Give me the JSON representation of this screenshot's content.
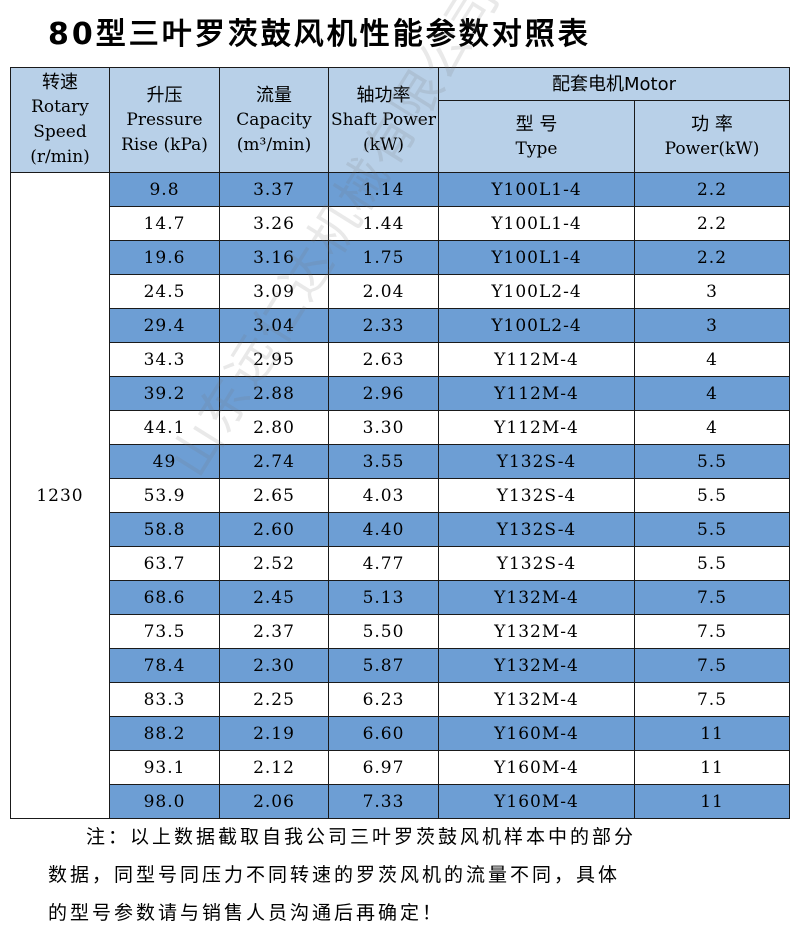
{
  "title": "80型三叶罗茨鼓风机性能参数对照表",
  "headers": {
    "speed_cn": "转速",
    "speed_en": "Rotary Speed (r/min)",
    "pressure_cn": "升压",
    "pressure_en": "Pressure Rise (kPa)",
    "capacity_cn": "流量",
    "capacity_en": "Capacity (m³/min)",
    "shaft_cn": "轴功率",
    "shaft_en": "Shaft Power (kW)",
    "motor_group": "配套电机Motor",
    "type_cn": "型 号",
    "type_en": "Type",
    "power_cn": "功 率",
    "power_en": "Power(kW)"
  },
  "speed_value": "1230",
  "rows": [
    {
      "pressure": "9.8",
      "capacity": "3.37",
      "shaft": "1.14",
      "type": "Y100L1-4",
      "power": "2.2"
    },
    {
      "pressure": "14.7",
      "capacity": "3.26",
      "shaft": "1.44",
      "type": "Y100L1-4",
      "power": "2.2"
    },
    {
      "pressure": "19.6",
      "capacity": "3.16",
      "shaft": "1.75",
      "type": "Y100L1-4",
      "power": "2.2"
    },
    {
      "pressure": "24.5",
      "capacity": "3.09",
      "shaft": "2.04",
      "type": "Y100L2-4",
      "power": "3"
    },
    {
      "pressure": "29.4",
      "capacity": "3.04",
      "shaft": "2.33",
      "type": "Y100L2-4",
      "power": "3"
    },
    {
      "pressure": "34.3",
      "capacity": "2.95",
      "shaft": "2.63",
      "type": "Y112M-4",
      "power": "4"
    },
    {
      "pressure": "39.2",
      "capacity": "2.88",
      "shaft": "2.96",
      "type": "Y112M-4",
      "power": "4"
    },
    {
      "pressure": "44.1",
      "capacity": "2.80",
      "shaft": "3.30",
      "type": "Y112M-4",
      "power": "4"
    },
    {
      "pressure": "49",
      "capacity": "2.74",
      "shaft": "3.55",
      "type": "Y132S-4",
      "power": "5.5"
    },
    {
      "pressure": "53.9",
      "capacity": "2.65",
      "shaft": "4.03",
      "type": "Y132S-4",
      "power": "5.5"
    },
    {
      "pressure": "58.8",
      "capacity": "2.60",
      "shaft": "4.40",
      "type": "Y132S-4",
      "power": "5.5"
    },
    {
      "pressure": "63.7",
      "capacity": "2.52",
      "shaft": "4.77",
      "type": "Y132S-4",
      "power": "5.5"
    },
    {
      "pressure": "68.6",
      "capacity": "2.45",
      "shaft": "5.13",
      "type": "Y132M-4",
      "power": "7.5"
    },
    {
      "pressure": "73.5",
      "capacity": "2.37",
      "shaft": "5.50",
      "type": "Y132M-4",
      "power": "7.5"
    },
    {
      "pressure": "78.4",
      "capacity": "2.30",
      "shaft": "5.87",
      "type": "Y132M-4",
      "power": "7.5"
    },
    {
      "pressure": "83.3",
      "capacity": "2.25",
      "shaft": "6.23",
      "type": "Y132M-4",
      "power": "7.5"
    },
    {
      "pressure": "88.2",
      "capacity": "2.19",
      "shaft": "6.60",
      "type": "Y160M-4",
      "power": "11"
    },
    {
      "pressure": "93.1",
      "capacity": "2.12",
      "shaft": "6.97",
      "type": "Y160M-4",
      "power": "11"
    },
    {
      "pressure": "98.0",
      "capacity": "2.06",
      "shaft": "7.33",
      "type": "Y160M-4",
      "power": "11"
    }
  ],
  "note": {
    "line1": "注：以上数据截取自我公司三叶罗茨鼓风机样本中的部分",
    "line2": "数据，同型号同压力不同转速的罗茨风机的流量不同，具体",
    "line3": "的型号参数请与销售人员沟通后再确定！"
  },
  "watermark": "山东远仁达机械有限公司",
  "colors": {
    "header_bg": "#b8d0e8",
    "band_bg": "#6d9ed4",
    "plain_bg": "#ffffff"
  }
}
